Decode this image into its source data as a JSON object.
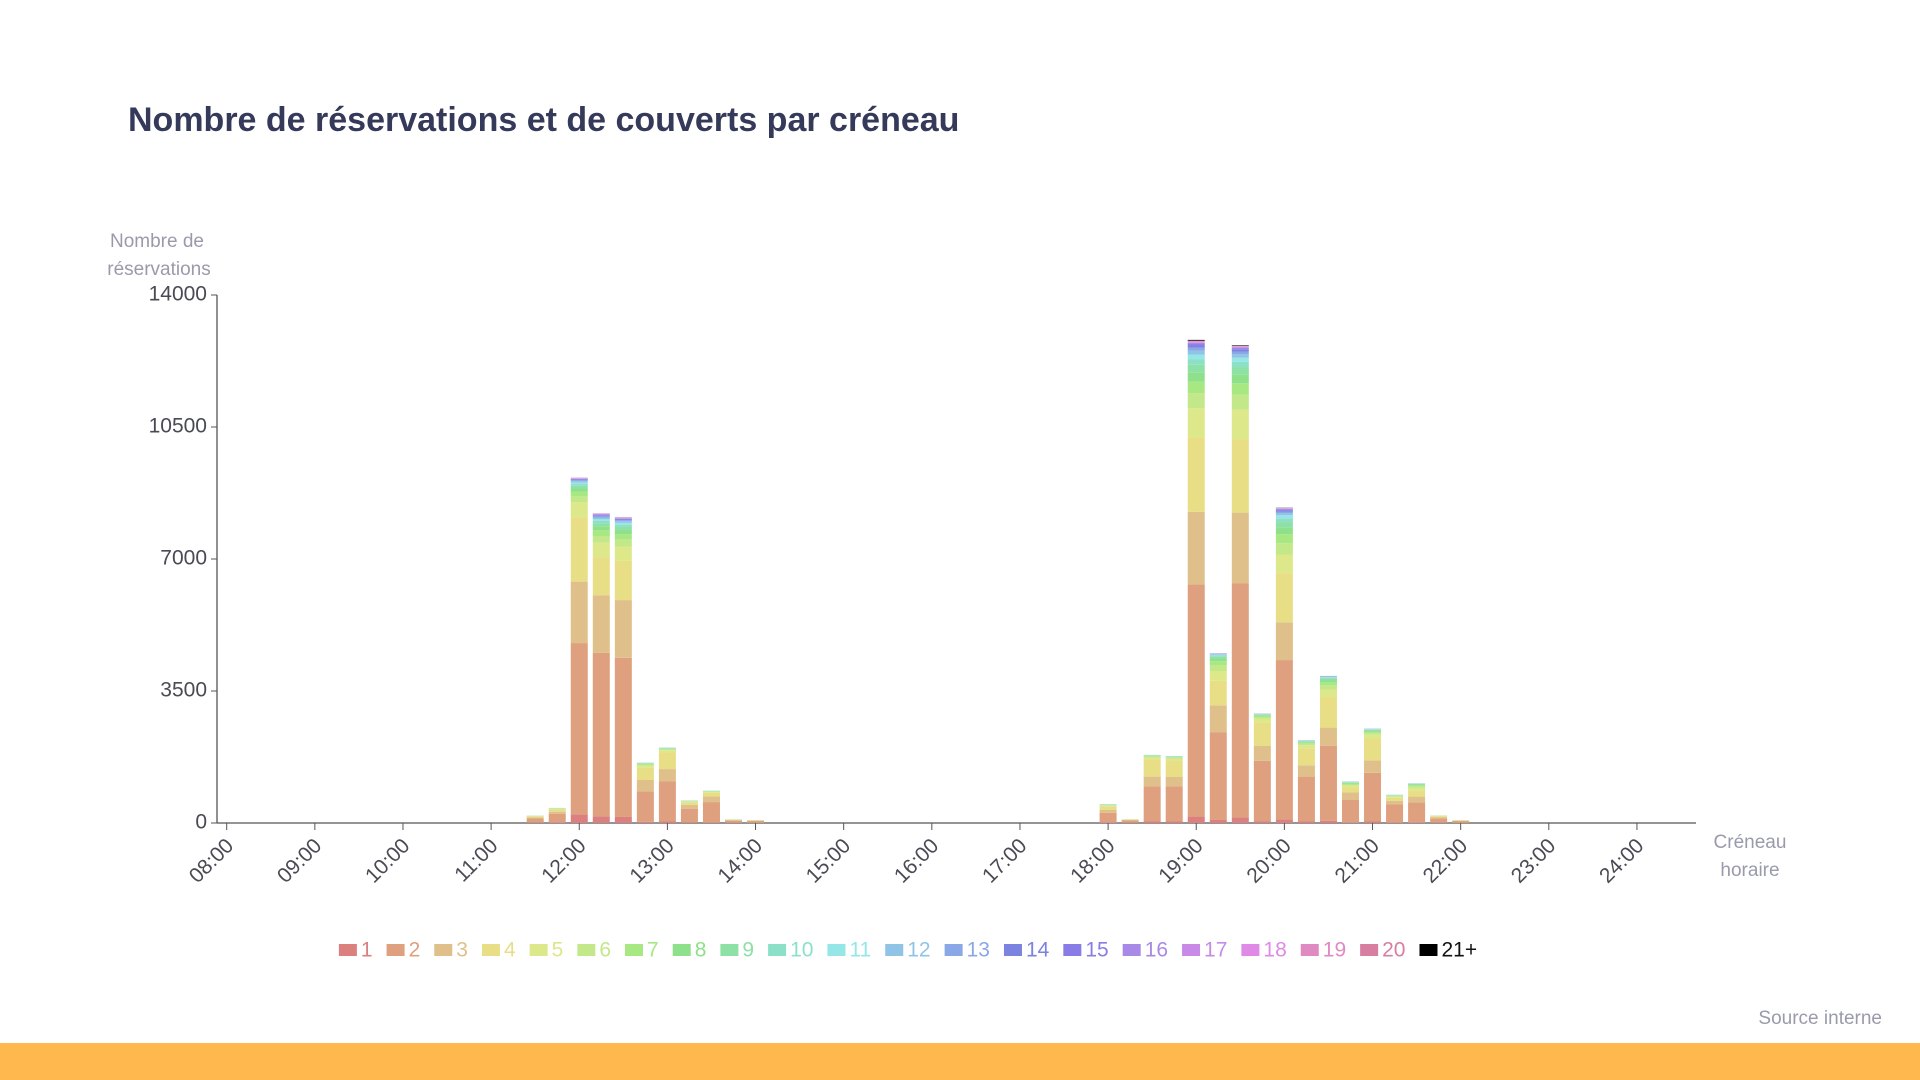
{
  "chart_data": {
    "type": "stacked-bar",
    "title": "Nombre de réservations et de couverts par créneau",
    "y_label": [
      "Nombre de",
      "réservations"
    ],
    "x_label": [
      "Créneau",
      "horaire"
    ],
    "source": "Source interne",
    "x": [
      11.5,
      11.75,
      12,
      12.25,
      12.5,
      12.75,
      13,
      13.25,
      13.5,
      13.75,
      14,
      18,
      18.25,
      18.5,
      18.75,
      19,
      19.25,
      19.5,
      19.75,
      20,
      20.25,
      20.5,
      20.75,
      21,
      21.25,
      21.5,
      21.75,
      22
    ],
    "xlim": [
      7.89,
      24.67
    ],
    "xticks": [
      {
        "value": 8,
        "label": "08:00"
      },
      {
        "value": 9,
        "label": "09:00"
      },
      {
        "value": 10,
        "label": "10:00"
      },
      {
        "value": 11,
        "label": "11:00"
      },
      {
        "value": 12,
        "label": "12:00"
      },
      {
        "value": 13,
        "label": "13:00"
      },
      {
        "value": 14,
        "label": "14:00"
      },
      {
        "value": 15,
        "label": "15:00"
      },
      {
        "value": 16,
        "label": "16:00"
      },
      {
        "value": 17,
        "label": "17:00"
      },
      {
        "value": 18,
        "label": "18:00"
      },
      {
        "value": 19,
        "label": "19:00"
      },
      {
        "value": 20,
        "label": "20:00"
      },
      {
        "value": 21,
        "label": "21:00"
      },
      {
        "value": 22,
        "label": "22:00"
      },
      {
        "value": 23,
        "label": "23:00"
      },
      {
        "value": 24,
        "label": "24:00"
      }
    ],
    "ylim": [
      0,
      14000
    ],
    "yticks": [
      0,
      3500,
      7000,
      10500,
      14000
    ],
    "series": [
      {
        "name": "1",
        "color": "#dc7f7f",
        "values": [
          10,
          20,
          230,
          180,
          160,
          30,
          40,
          10,
          15,
          3,
          2,
          20,
          5,
          40,
          40,
          170,
          80,
          150,
          50,
          100,
          40,
          60,
          20,
          40,
          15,
          20,
          5,
          2
        ]
      },
      {
        "name": "2",
        "color": "#dea07f",
        "values": [
          110,
          220,
          4540,
          4330,
          4220,
          810,
          1060,
          370,
          540,
          60,
          50,
          250,
          60,
          930,
          930,
          6160,
          2320,
          6200,
          1600,
          4220,
          1190,
          1990,
          600,
          1290,
          475,
          530,
          120,
          50
        ]
      },
      {
        "name": "3",
        "color": "#e0c08a",
        "values": [
          30,
          60,
          1630,
          1530,
          1530,
          300,
          330,
          100,
          150,
          15,
          12,
          80,
          15,
          260,
          250,
          1920,
          720,
          1880,
          400,
          1000,
          300,
          480,
          190,
          330,
          100,
          150,
          30,
          10
        ]
      },
      {
        "name": "4",
        "color": "#e8de86",
        "values": [
          30,
          60,
          1710,
          1010,
          1040,
          320,
          450,
          70,
          100,
          10,
          8,
          80,
          10,
          460,
          440,
          1980,
          650,
          1950,
          610,
          1300,
          450,
          810,
          130,
          580,
          80,
          150,
          25,
          10
        ]
      },
      {
        "name": "5",
        "color": "#dce88a",
        "values": [
          8,
          15,
          400,
          380,
          380,
          60,
          50,
          15,
          20,
          3,
          3,
          25,
          3,
          50,
          50,
          770,
          260,
          780,
          100,
          500,
          80,
          200,
          50,
          100,
          30,
          80,
          8,
          3
        ]
      },
      {
        "name": "6",
        "color": "#c3e88a",
        "values": [
          4,
          8,
          150,
          180,
          180,
          30,
          25,
          10,
          10,
          2,
          2,
          15,
          2,
          20,
          20,
          400,
          160,
          400,
          50,
          300,
          40,
          110,
          30,
          50,
          15,
          40,
          5,
          2
        ]
      },
      {
        "name": "7",
        "color": "#a7e882",
        "values": [
          3,
          6,
          120,
          150,
          150,
          20,
          15,
          8,
          8,
          1,
          1,
          10,
          2,
          15,
          15,
          300,
          100,
          300,
          30,
          240,
          30,
          80,
          25,
          35,
          10,
          30,
          3,
          1
        ]
      },
      {
        "name": "8",
        "color": "#8fe08a",
        "values": [
          2,
          4,
          90,
          110,
          110,
          10,
          10,
          5,
          5,
          1,
          1,
          8,
          1,
          10,
          10,
          250,
          70,
          240,
          20,
          180,
          20,
          60,
          20,
          25,
          8,
          20,
          2,
          1
        ]
      },
      {
        "name": "9",
        "color": "#8de0a6",
        "values": [
          1,
          3,
          70,
          80,
          80,
          8,
          8,
          4,
          4,
          1,
          0,
          5,
          1,
          8,
          8,
          200,
          50,
          190,
          15,
          140,
          15,
          40,
          15,
          20,
          5,
          12,
          1,
          0
        ]
      },
      {
        "name": "10",
        "color": "#8de0c8",
        "values": [
          1,
          2,
          50,
          60,
          60,
          5,
          5,
          3,
          3,
          1,
          0,
          3,
          1,
          5,
          5,
          150,
          30,
          140,
          10,
          100,
          10,
          25,
          8,
          12,
          4,
          8,
          1,
          0
        ]
      },
      {
        "name": "11",
        "color": "#95e6e6",
        "values": [
          0,
          1,
          40,
          50,
          50,
          3,
          3,
          2,
          2,
          1,
          0,
          2,
          0,
          3,
          3,
          120,
          20,
          110,
          6,
          80,
          8,
          15,
          5,
          8,
          3,
          5,
          0,
          0
        ]
      },
      {
        "name": "12",
        "color": "#8fc4e6",
        "values": [
          0,
          1,
          35,
          40,
          40,
          2,
          2,
          1,
          1,
          0,
          0,
          1,
          0,
          2,
          2,
          100,
          15,
          90,
          4,
          60,
          5,
          10,
          4,
          5,
          2,
          3,
          0,
          0
        ]
      },
      {
        "name": "13",
        "color": "#8aa8e6",
        "values": [
          0,
          0,
          25,
          30,
          30,
          1,
          1,
          1,
          1,
          0,
          0,
          1,
          0,
          1,
          1,
          80,
          10,
          70,
          3,
          40,
          3,
          8,
          2,
          3,
          1,
          2,
          0,
          0
        ]
      },
      {
        "name": "14",
        "color": "#7c82e0",
        "values": [
          0,
          0,
          15,
          20,
          20,
          1,
          1,
          0,
          0,
          0,
          0,
          0,
          0,
          1,
          1,
          60,
          5,
          50,
          2,
          30,
          2,
          5,
          1,
          2,
          1,
          1,
          0,
          0
        ]
      },
      {
        "name": "15",
        "color": "#8a7ce6",
        "values": [
          0,
          0,
          15,
          15,
          15,
          0,
          0,
          0,
          0,
          0,
          0,
          0,
          0,
          0,
          0,
          40,
          3,
          30,
          1,
          20,
          1,
          3,
          1,
          1,
          0,
          1,
          0,
          0
        ]
      },
      {
        "name": "16",
        "color": "#a88ae6",
        "values": [
          0,
          0,
          10,
          15,
          15,
          0,
          0,
          0,
          0,
          0,
          0,
          0,
          0,
          0,
          0,
          30,
          2,
          25,
          1,
          15,
          1,
          2,
          0,
          1,
          0,
          0,
          0,
          0
        ]
      },
      {
        "name": "17",
        "color": "#c88ae6",
        "values": [
          0,
          0,
          8,
          10,
          10,
          0,
          0,
          0,
          0,
          0,
          0,
          0,
          0,
          0,
          0,
          20,
          2,
          15,
          1,
          10,
          0,
          1,
          0,
          0,
          0,
          0,
          0,
          0
        ]
      },
      {
        "name": "18",
        "color": "#de8ae6",
        "values": [
          0,
          0,
          5,
          8,
          8,
          0,
          0,
          0,
          0,
          0,
          0,
          0,
          0,
          0,
          0,
          15,
          1,
          10,
          0,
          8,
          0,
          1,
          0,
          0,
          0,
          0,
          0,
          0
        ]
      },
      {
        "name": "19",
        "color": "#e08ac2",
        "values": [
          0,
          0,
          5,
          5,
          5,
          0,
          0,
          0,
          0,
          0,
          0,
          0,
          0,
          0,
          0,
          15,
          1,
          10,
          0,
          5,
          0,
          0,
          0,
          0,
          0,
          0,
          0,
          0
        ]
      },
      {
        "name": "20",
        "color": "#d87ea0",
        "values": [
          0,
          0,
          3,
          3,
          3,
          0,
          0,
          0,
          0,
          0,
          0,
          0,
          0,
          0,
          0,
          10,
          1,
          8,
          0,
          5,
          0,
          0,
          0,
          0,
          0,
          0,
          0,
          0
        ]
      },
      {
        "name": "21+",
        "color": "#000000",
        "values": [
          0,
          0,
          2,
          2,
          2,
          0,
          0,
          0,
          0,
          0,
          0,
          0,
          0,
          0,
          0,
          20,
          0,
          15,
          0,
          5,
          0,
          0,
          0,
          0,
          0,
          0,
          0,
          0
        ]
      }
    ]
  }
}
